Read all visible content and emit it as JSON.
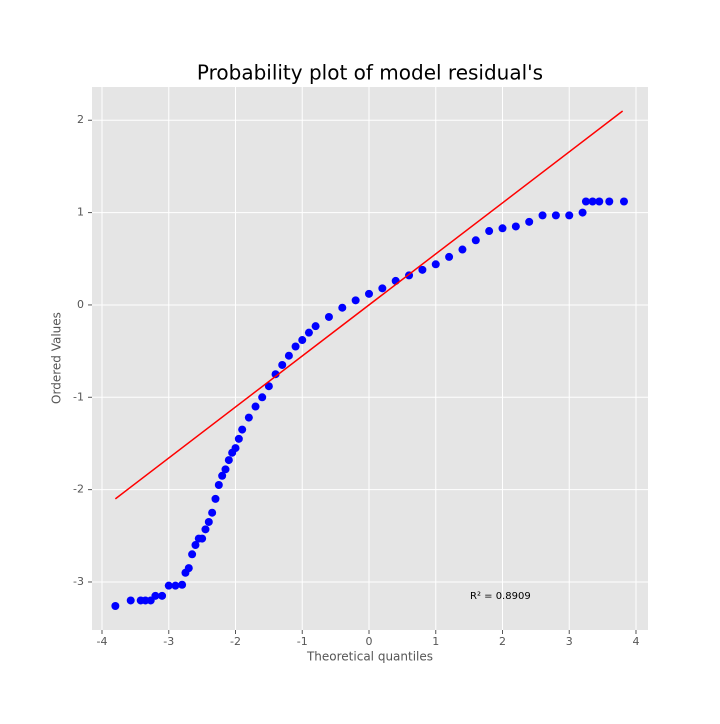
{
  "chart_data": {
    "type": "scatter",
    "title": "Probability plot of model residual's",
    "xlabel": "Theoretical quantiles",
    "ylabel": "Ordered Values",
    "annotation": "R² = 0.8909",
    "xlim": [
      -4.15,
      4.18
    ],
    "ylim": [
      -3.52,
      2.36
    ],
    "xticks": [
      -4,
      -3,
      -2,
      -1,
      0,
      1,
      2,
      3,
      4
    ],
    "yticks": [
      -3,
      -2,
      -1,
      0,
      1,
      2
    ],
    "grid": true,
    "series": [
      {
        "mode": "markers",
        "color": "#0000ff",
        "x": [
          -3.8,
          -3.57,
          -3.42,
          -3.35,
          -3.27,
          -3.2,
          -3.1,
          -3.0,
          -2.9,
          -2.8,
          -2.75,
          -2.7,
          -2.65,
          -2.6,
          -2.55,
          -2.5,
          -2.45,
          -2.4,
          -2.35,
          -2.3,
          -2.25,
          -2.2,
          -2.15,
          -2.1,
          -2.05,
          -2.0,
          -1.95,
          -1.9,
          -1.8,
          -1.7,
          -1.6,
          -1.5,
          -1.4,
          -1.3,
          -1.2,
          -1.1,
          -1.0,
          -0.9,
          -0.8,
          -0.6,
          -0.4,
          -0.2,
          0,
          0.2,
          0.4,
          0.6,
          0.8,
          1.0,
          1.2,
          1.4,
          1.6,
          1.8,
          2.0,
          2.2,
          2.4,
          2.6,
          2.8,
          3.0,
          3.2,
          3.25,
          3.35,
          3.45,
          3.6,
          3.82
        ],
        "values": [
          -3.26,
          -3.2,
          -3.2,
          -3.2,
          -3.2,
          -3.15,
          -3.15,
          -3.04,
          -3.04,
          -3.03,
          -2.9,
          -2.85,
          -2.7,
          -2.6,
          -2.53,
          -2.53,
          -2.43,
          -2.35,
          -2.25,
          -2.1,
          -1.95,
          -1.85,
          -1.78,
          -1.68,
          -1.6,
          -1.55,
          -1.45,
          -1.35,
          -1.22,
          -1.1,
          -1.0,
          -0.88,
          -0.75,
          -0.65,
          -0.55,
          -0.45,
          -0.38,
          -0.3,
          -0.23,
          -0.13,
          -0.03,
          0.05,
          0.12,
          0.18,
          0.26,
          0.32,
          0.38,
          0.44,
          0.52,
          0.6,
          0.7,
          0.8,
          0.83,
          0.85,
          0.9,
          0.97,
          0.97,
          0.97,
          1.0,
          1.12,
          1.12,
          1.12,
          1.12,
          1.12
        ]
      },
      {
        "mode": "line",
        "color": "#ff0000",
        "x": [
          -3.8,
          3.8
        ],
        "values": [
          -2.1,
          2.1
        ]
      }
    ]
  }
}
